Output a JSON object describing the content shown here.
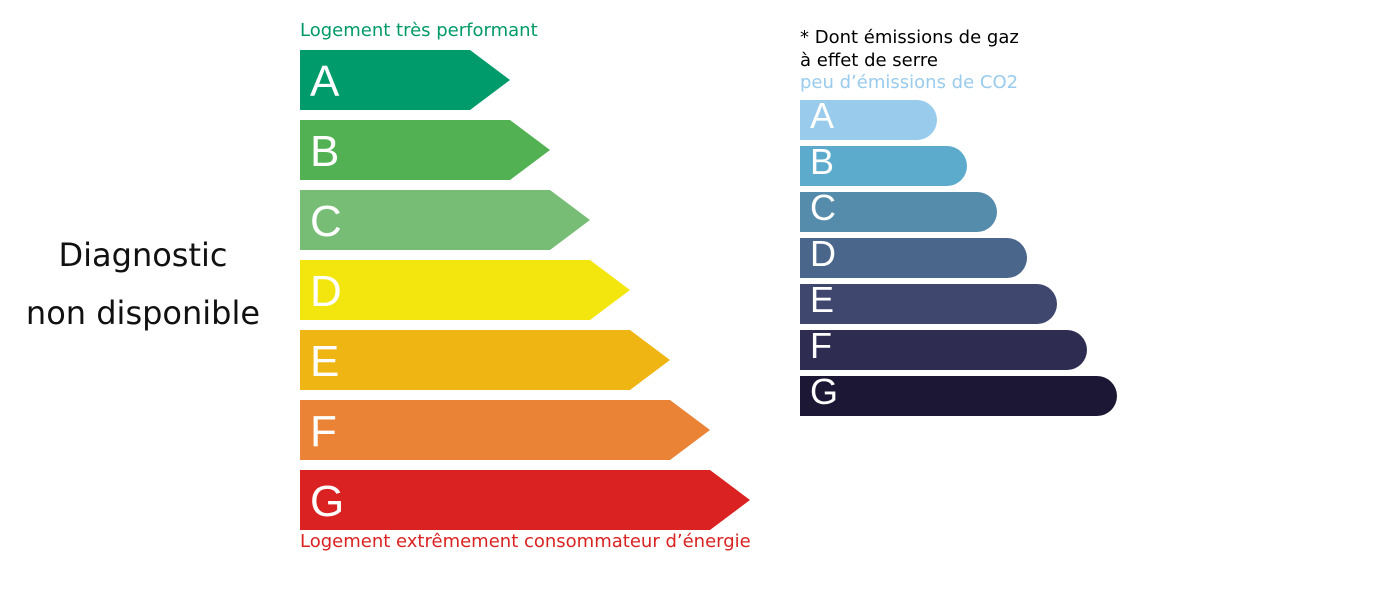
{
  "diagnostic": {
    "line1": "Diagnostic",
    "line2": "non disponible"
  },
  "energy": {
    "top_label": "Logement très performant",
    "bottom_label": "Logement extrêmement consommateur d’énergie",
    "top_color": "#009a68",
    "bottom_color": "#d92221",
    "classes": [
      {
        "letter": "A",
        "color": "#009b6a"
      },
      {
        "letter": "B",
        "color": "#52b153"
      },
      {
        "letter": "C",
        "color": "#78bd76"
      },
      {
        "letter": "D",
        "color": "#f3e60f"
      },
      {
        "letter": "E",
        "color": "#efb512"
      },
      {
        "letter": "F",
        "color": "#eb8336"
      },
      {
        "letter": "G",
        "color": "#d92221"
      }
    ]
  },
  "ges": {
    "title_line1": "* Dont émissions de gaz",
    "title_line2": "à effet de serre",
    "top_label": "peu d’émissions de CO2",
    "top_color": "#99cbec",
    "classes": [
      {
        "letter": "A",
        "color": "#99cbec"
      },
      {
        "letter": "B",
        "color": "#5cabcd"
      },
      {
        "letter": "C",
        "color": "#558bab"
      },
      {
        "letter": "D",
        "color": "#4a668a"
      },
      {
        "letter": "E",
        "color": "#3f476e"
      },
      {
        "letter": "F",
        "color": "#2e2c51"
      },
      {
        "letter": "G",
        "color": "#1c1734"
      }
    ]
  }
}
